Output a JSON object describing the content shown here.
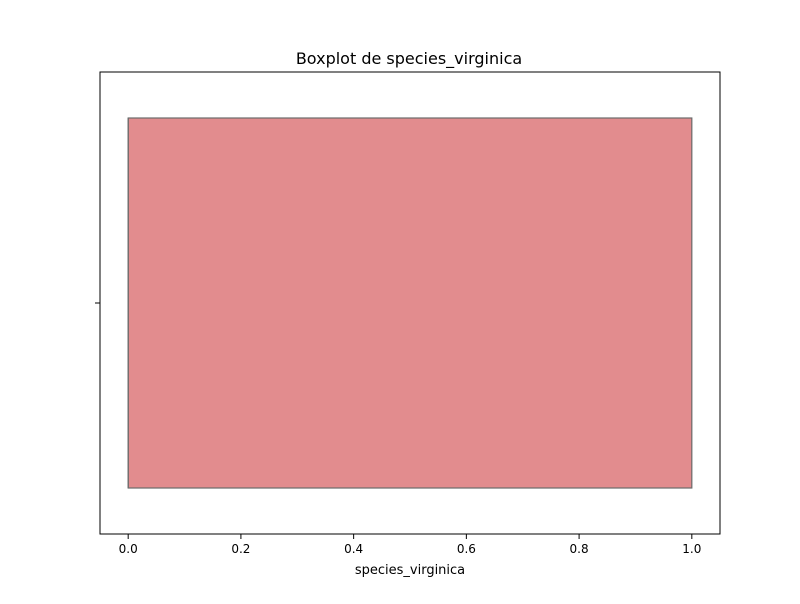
{
  "chart_data": {
    "type": "boxplot",
    "title": "Boxplot de species_virginica",
    "xlabel": "species_virginica",
    "ylabel": "",
    "xlim": [
      -0.05,
      1.05
    ],
    "xticks": [
      0.0,
      0.2,
      0.4,
      0.6,
      0.8,
      1.0
    ],
    "xtick_labels": [
      "0.0",
      "0.2",
      "0.4",
      "0.6",
      "0.8",
      "1.0"
    ],
    "orientation": "horizontal",
    "grid": false,
    "box": {
      "min": 0.0,
      "q1": 0.0,
      "median": 0.0,
      "q3": 1.0,
      "max": 1.0
    },
    "colors": {
      "box_fill": "#e28c8e",
      "box_edge": "#6b6b6b"
    }
  }
}
